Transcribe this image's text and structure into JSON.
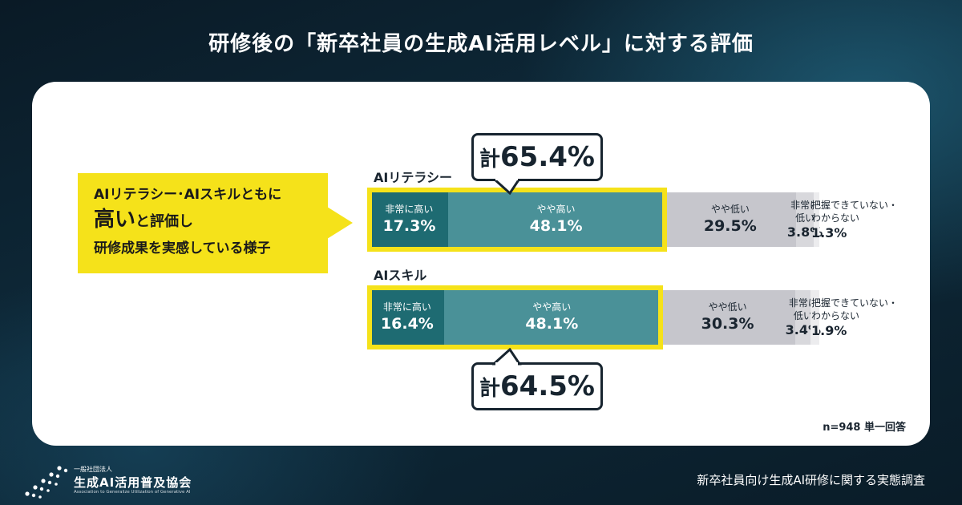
{
  "title": "研修後の「新卒社員の生成AI活用レベル」に対する評価",
  "callout": {
    "line1": "AIリテラシー･AIスキルともに",
    "line2_big": "高い",
    "line2_rest": "と評価し",
    "line3": "研修成果を実感している様子"
  },
  "colors": {
    "very_high": "#1e6b72",
    "high": "#4a9198",
    "low": "#c6c6cc",
    "very_low": "#d8d8dc",
    "unknown": "#ececee",
    "highlight": "#f5e21a"
  },
  "chart_data": {
    "type": "bar",
    "orientation": "horizontal-stacked-100",
    "categories": [
      "AIリテラシー",
      "AIスキル"
    ],
    "series": [
      {
        "name": "非常に高い",
        "values": [
          17.3,
          16.4
        ]
      },
      {
        "name": "やや高い",
        "values": [
          48.1,
          48.1
        ]
      },
      {
        "name": "やや低い",
        "values": [
          29.5,
          30.3
        ]
      },
      {
        "name": "非常に低い",
        "values": [
          3.8,
          3.4
        ]
      },
      {
        "name": "把握できていない・わからない",
        "values": [
          1.3,
          1.9
        ]
      }
    ],
    "totals": [
      {
        "prefix": "計",
        "value": "65.4%"
      },
      {
        "prefix": "計",
        "value": "64.5%"
      }
    ]
  },
  "labels": {
    "very_high": "非常に高い",
    "high": "やや高い",
    "low": "やや低い",
    "very_low_1": "非常に",
    "very_low_2": "低い",
    "unknown_1": "把握できていない・",
    "unknown_2": "わからない"
  },
  "rows": [
    {
      "label": "AIリテラシー",
      "v1": "17.3%",
      "v2": "48.1%",
      "v3": "29.5%",
      "v4": "3.8%",
      "v5": "1.3%"
    },
    {
      "label": "AIスキル",
      "v1": "16.4%",
      "v2": "48.1%",
      "v3": "30.3%",
      "v4": "3.4%",
      "v5": "1.9%"
    }
  ],
  "n_note": "n=948 単一回答",
  "logo": {
    "small": "一般社団法人",
    "main": "生成AI活用普及協会",
    "en": "Association to Generalize Utilization of Generative AI"
  },
  "footer": "新卒社員向け生成AI研修に関する実態調査"
}
